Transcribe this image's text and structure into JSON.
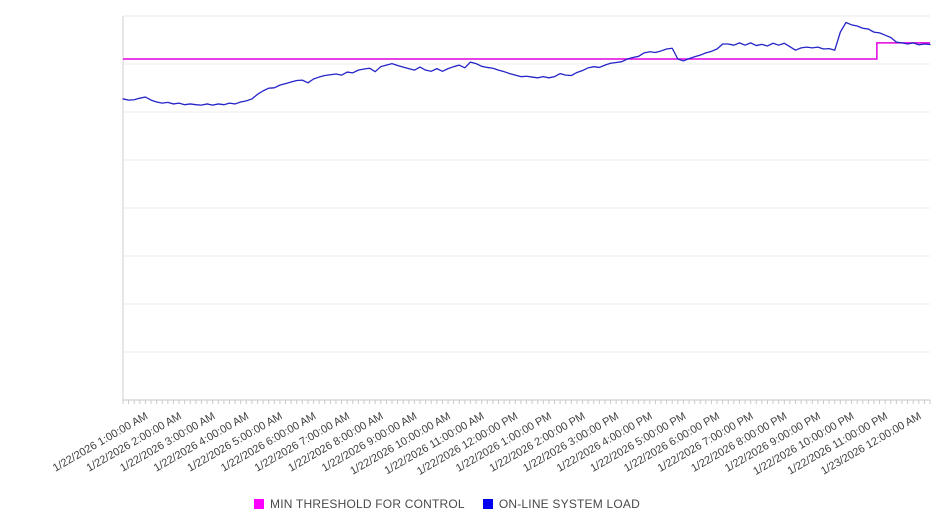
{
  "legend": {
    "items": [
      {
        "label": "MIN THRESHOLD FOR CONTROL",
        "color": "#ff00ff"
      },
      {
        "label": "ON-LINE SYSTEM LOAD",
        "color": "#0000ee"
      }
    ]
  },
  "chart_data": {
    "type": "line",
    "title": "",
    "xlabel": "",
    "ylabel": "",
    "grid": "horizontal",
    "legend_position": "bottom-center",
    "xlim": [
      0,
      24
    ],
    "x_unit": "hours elapsed from 1/22/2026 12:00:00 AM",
    "ylim": [
      0,
      100
    ],
    "y_axis_unlabeled": true,
    "y_note": "no y-axis tick labels visible; values normalized 0-100 over plot height, 8 gridline divisions",
    "x_axis": {
      "minor_tick_interval_minutes": 10,
      "label_rotation_deg": -30,
      "tick_labels": [
        "1/22/2026 1:00:00 AM",
        "1/22/2026 2:00:00 AM",
        "1/22/2026 3:00:00 AM",
        "1/22/2026 4:00:00 AM",
        "1/22/2026 5:00:00 AM",
        "1/22/2026 6:00:00 AM",
        "1/22/2026 7:00:00 AM",
        "1/22/2026 8:00:00 AM",
        "1/22/2026 9:00:00 AM",
        "1/22/2026 10:00:00 AM",
        "1/22/2026 11:00:00 AM",
        "1/22/2026 12:00:00 PM",
        "1/22/2026 1:00:00 PM",
        "1/22/2026 2:00:00 PM",
        "1/22/2026 3:00:00 PM",
        "1/22/2026 4:00:00 PM",
        "1/22/2026 5:00:00 PM",
        "1/22/2026 6:00:00 PM",
        "1/22/2026 7:00:00 PM",
        "1/22/2026 8:00:00 PM",
        "1/22/2026 9:00:00 PM",
        "1/22/2026 10:00:00 PM",
        "1/22/2026 11:00:00 PM",
        "1/23/2026 12:00:00 AM"
      ]
    },
    "series": [
      {
        "name": "MIN THRESHOLD FOR CONTROL",
        "type": "step-line",
        "color": "#ff00ff",
        "line_color": "#e000e0",
        "points": [
          [
            0,
            88.8
          ],
          [
            22.42,
            88.8
          ],
          [
            22.42,
            93.0
          ],
          [
            24,
            93.0
          ]
        ]
      },
      {
        "name": "ON-LINE SYSTEM LOAD",
        "type": "line",
        "color": "#0000ee",
        "line_color": "#2424c8",
        "start_hour": 0,
        "interval_minutes": 10,
        "values": [
          78.4,
          78.1,
          78.2,
          78.6,
          78.9,
          78.1,
          77.6,
          77.3,
          77.5,
          77.1,
          77.3,
          76.9,
          77.1,
          76.9,
          76.8,
          77.1,
          76.8,
          77.1,
          76.9,
          77.3,
          77.1,
          77.6,
          77.9,
          78.4,
          79.6,
          80.5,
          81.2,
          81.3,
          82.0,
          82.4,
          82.8,
          83.2,
          83.3,
          82.6,
          83.6,
          84.1,
          84.5,
          84.7,
          84.9,
          84.6,
          85.4,
          85.2,
          85.9,
          86.2,
          86.4,
          85.5,
          86.8,
          87.2,
          87.6,
          87.1,
          86.7,
          86.3,
          85.9,
          86.7,
          85.9,
          85.6,
          86.3,
          85.6,
          86.3,
          86.8,
          87.2,
          86.5,
          88.0,
          87.6,
          86.9,
          86.6,
          86.4,
          85.9,
          85.5,
          85.0,
          84.6,
          84.2,
          84.3,
          84.1,
          83.9,
          84.2,
          83.9,
          84.2,
          85.0,
          84.6,
          84.5,
          85.3,
          85.8,
          86.5,
          86.8,
          86.6,
          87.2,
          87.7,
          87.9,
          88.1,
          88.8,
          89.2,
          89.5,
          90.4,
          90.7,
          90.5,
          90.9,
          91.4,
          91.6,
          88.8,
          88.3,
          88.9,
          89.4,
          89.8,
          90.4,
          90.8,
          91.4,
          92.7,
          92.7,
          92.4,
          93.0,
          92.4,
          93.0,
          92.3,
          92.6,
          92.2,
          92.9,
          92.4,
          92.9,
          92.0,
          91.1,
          91.7,
          91.9,
          91.7,
          91.9,
          91.4,
          91.5,
          91.1,
          95.8,
          98.3,
          97.7,
          97.4,
          96.8,
          96.6,
          95.8,
          95.6,
          95.0,
          94.4,
          93.2,
          93.0,
          92.7,
          93.0,
          92.5,
          92.7,
          92.6
        ]
      }
    ]
  }
}
